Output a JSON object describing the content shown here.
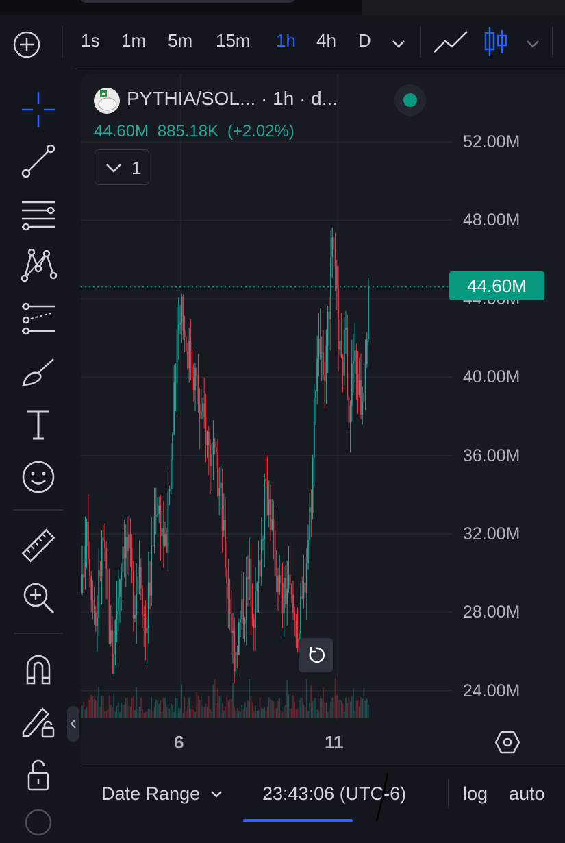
{
  "toolbar": {
    "intervals": [
      "1s",
      "1m",
      "5m",
      "15m",
      "1h",
      "4h",
      "D"
    ],
    "active_interval": "1h"
  },
  "legend": {
    "title": "PYTHIA/SOL... · 1h · d...",
    "close": "44.60M",
    "change": "885.18K",
    "change_pct": "(+2.02%)",
    "indicator_count": "1"
  },
  "price_axis": {
    "labels": [
      "52.00M",
      "48.00M",
      "44.00M",
      "40.00M",
      "36.00M",
      "32.00M",
      "28.00M",
      "24.00M"
    ],
    "current_price": "44.60M"
  },
  "time_axis": {
    "labels": [
      "6",
      "11"
    ]
  },
  "bottom_bar": {
    "date_range": "Date Range",
    "clock": "23:43:06 (UTC-6)",
    "log": "log",
    "auto": "auto"
  },
  "colors": {
    "up": "#26a69a",
    "down": "#f23645",
    "accent": "#2962ff",
    "last_price": "#089981"
  }
}
